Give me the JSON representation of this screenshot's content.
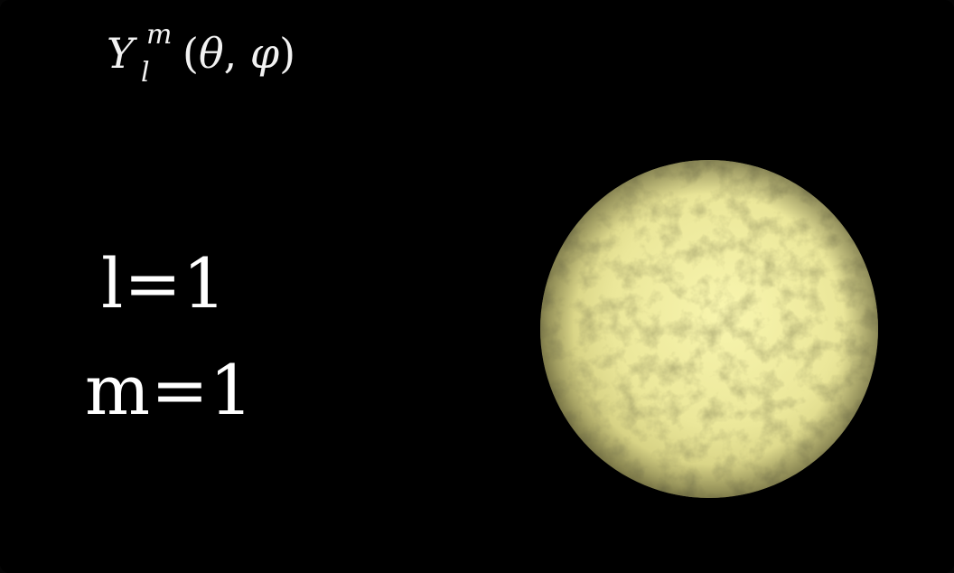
{
  "formula": {
    "base": "Y",
    "superscript": "m",
    "subscript": "l",
    "args": {
      "open": "(",
      "theta": "θ",
      "sep": ", ",
      "phi": "φ",
      "close": ")"
    }
  },
  "quantum_numbers": {
    "l_label": "l=1",
    "m_label": "m=1"
  },
  "colors": {
    "background": "#000000",
    "text": "#ffffff",
    "sphere_light": "#f6f3a6",
    "sphere_mid": "#e3df8c",
    "sphere_dark": "#8f8a4a"
  },
  "icons": {
    "sphere": "textured-sphere"
  }
}
